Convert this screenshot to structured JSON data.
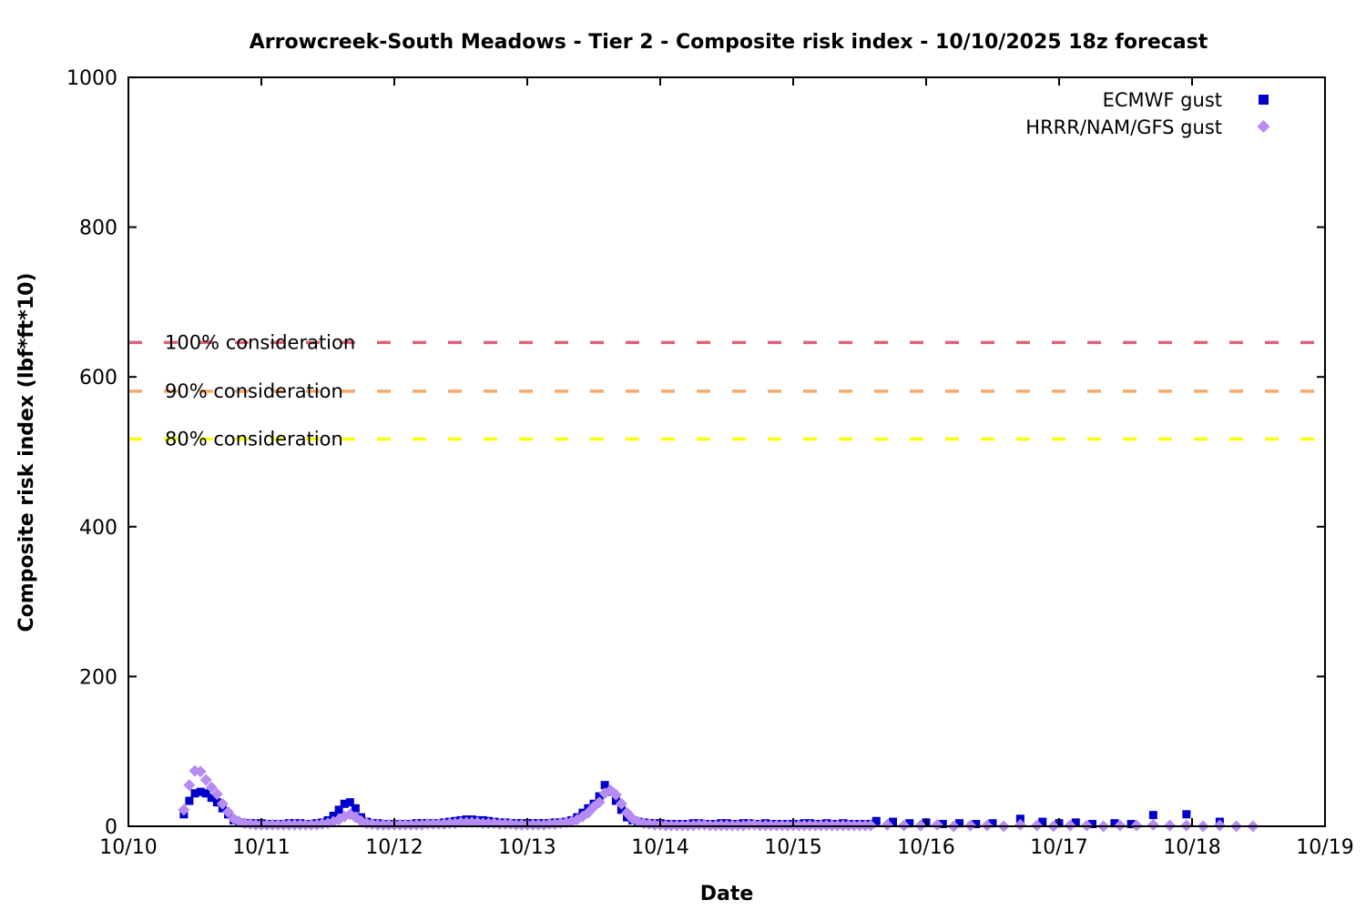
{
  "chart_data": {
    "type": "scatter",
    "title": "Arrowcreek-South Meadows - Tier 2 - Composite risk index - 10/10/2025 18z forecast",
    "xlabel": "Date",
    "ylabel": "Composite risk index (lbf*ft*10)",
    "xlim": [
      10,
      19
    ],
    "ylim": [
      0,
      1000
    ],
    "grid": false,
    "legend_position": "top-right-inside",
    "x_tick_labels": [
      "10/10",
      "10/11",
      "10/12",
      "10/13",
      "10/14",
      "10/15",
      "10/16",
      "10/17",
      "10/18",
      "10/19"
    ],
    "x_tick_values": [
      10,
      11,
      12,
      13,
      14,
      15,
      16,
      17,
      18,
      19
    ],
    "y_tick_labels": [
      "0",
      "200",
      "400",
      "600",
      "800",
      "1000"
    ],
    "y_tick_values": [
      0,
      200,
      400,
      600,
      800,
      1000
    ],
    "thresholds": [
      {
        "label": "100% consideration",
        "value": 646,
        "color": "#db6379",
        "style": "dashed"
      },
      {
        "label": "90% consideration",
        "value": 581,
        "color": "#f4aa6c",
        "style": "dashed"
      },
      {
        "label": "80% consideration",
        "value": 517,
        "color": "#ffff00",
        "style": "dashed"
      }
    ],
    "series": [
      {
        "name": "ECMWF gust",
        "marker": "square",
        "color": "#0000cc",
        "points": [
          [
            10.417,
            16
          ],
          [
            10.458,
            34
          ],
          [
            10.5,
            44
          ],
          [
            10.542,
            46
          ],
          [
            10.583,
            44
          ],
          [
            10.625,
            38
          ],
          [
            10.667,
            32
          ],
          [
            10.708,
            24
          ],
          [
            10.75,
            16
          ],
          [
            10.792,
            8
          ],
          [
            10.833,
            5
          ],
          [
            10.875,
            4
          ],
          [
            10.917,
            4
          ],
          [
            10.958,
            4
          ],
          [
            11.0,
            4
          ],
          [
            11.042,
            3
          ],
          [
            11.083,
            3
          ],
          [
            11.125,
            3
          ],
          [
            11.167,
            3
          ],
          [
            11.208,
            4
          ],
          [
            11.25,
            4
          ],
          [
            11.292,
            4
          ],
          [
            11.333,
            3
          ],
          [
            11.375,
            3
          ],
          [
            11.417,
            4
          ],
          [
            11.458,
            5
          ],
          [
            11.5,
            8
          ],
          [
            11.542,
            14
          ],
          [
            11.583,
            22
          ],
          [
            11.625,
            30
          ],
          [
            11.667,
            32
          ],
          [
            11.708,
            24
          ],
          [
            11.75,
            12
          ],
          [
            11.792,
            6
          ],
          [
            11.833,
            4
          ],
          [
            11.875,
            4
          ],
          [
            11.917,
            3
          ],
          [
            11.958,
            3
          ],
          [
            12.0,
            3
          ],
          [
            12.042,
            3
          ],
          [
            12.083,
            3
          ],
          [
            12.125,
            3
          ],
          [
            12.167,
            4
          ],
          [
            12.208,
            4
          ],
          [
            12.25,
            4
          ],
          [
            12.292,
            4
          ],
          [
            12.333,
            4
          ],
          [
            12.375,
            5
          ],
          [
            12.417,
            6
          ],
          [
            12.458,
            7
          ],
          [
            12.5,
            8
          ],
          [
            12.542,
            9
          ],
          [
            12.583,
            9
          ],
          [
            12.625,
            8
          ],
          [
            12.667,
            8
          ],
          [
            12.708,
            7
          ],
          [
            12.75,
            6
          ],
          [
            12.792,
            5
          ],
          [
            12.833,
            5
          ],
          [
            12.875,
            4
          ],
          [
            12.917,
            4
          ],
          [
            12.958,
            4
          ],
          [
            13.0,
            4
          ],
          [
            13.042,
            4
          ],
          [
            13.083,
            4
          ],
          [
            13.125,
            4
          ],
          [
            13.167,
            4
          ],
          [
            13.208,
            5
          ],
          [
            13.25,
            5
          ],
          [
            13.292,
            6
          ],
          [
            13.333,
            8
          ],
          [
            13.375,
            12
          ],
          [
            13.417,
            18
          ],
          [
            13.458,
            24
          ],
          [
            13.5,
            30
          ],
          [
            13.542,
            40
          ],
          [
            13.583,
            55
          ],
          [
            13.625,
            46
          ],
          [
            13.667,
            34
          ],
          [
            13.708,
            22
          ],
          [
            13.75,
            12
          ],
          [
            13.792,
            8
          ],
          [
            13.833,
            6
          ],
          [
            13.875,
            5
          ],
          [
            13.917,
            4
          ],
          [
            13.958,
            4
          ],
          [
            14.0,
            4
          ],
          [
            14.042,
            3
          ],
          [
            14.083,
            3
          ],
          [
            14.125,
            3
          ],
          [
            14.167,
            3
          ],
          [
            14.208,
            3
          ],
          [
            14.25,
            4
          ],
          [
            14.292,
            4
          ],
          [
            14.333,
            3
          ],
          [
            14.375,
            3
          ],
          [
            14.417,
            3
          ],
          [
            14.458,
            4
          ],
          [
            14.5,
            4
          ],
          [
            14.542,
            3
          ],
          [
            14.583,
            3
          ],
          [
            14.625,
            4
          ],
          [
            14.667,
            4
          ],
          [
            14.708,
            3
          ],
          [
            14.75,
            3
          ],
          [
            14.792,
            4
          ],
          [
            14.833,
            3
          ],
          [
            14.875,
            3
          ],
          [
            14.917,
            3
          ],
          [
            14.958,
            3
          ],
          [
            15.0,
            3
          ],
          [
            15.042,
            3
          ],
          [
            15.083,
            4
          ],
          [
            15.125,
            4
          ],
          [
            15.167,
            3
          ],
          [
            15.208,
            3
          ],
          [
            15.25,
            4
          ],
          [
            15.292,
            3
          ],
          [
            15.333,
            3
          ],
          [
            15.375,
            4
          ],
          [
            15.417,
            3
          ],
          [
            15.458,
            3
          ],
          [
            15.5,
            3
          ],
          [
            15.542,
            3
          ],
          [
            15.583,
            3
          ],
          [
            15.625,
            7
          ],
          [
            15.75,
            6
          ],
          [
            15.875,
            4
          ],
          [
            16.0,
            5
          ],
          [
            16.125,
            3
          ],
          [
            16.25,
            4
          ],
          [
            16.375,
            3
          ],
          [
            16.5,
            4
          ],
          [
            16.708,
            10
          ],
          [
            16.875,
            6
          ],
          [
            17.0,
            4
          ],
          [
            17.125,
            5
          ],
          [
            17.25,
            3
          ],
          [
            17.417,
            4
          ],
          [
            17.542,
            3
          ],
          [
            17.708,
            15
          ],
          [
            17.958,
            16
          ],
          [
            18.208,
            6
          ]
        ]
      },
      {
        "name": "HRRR/NAM/GFS gust",
        "marker": "diamond",
        "color": "#b78cf2",
        "points": [
          [
            10.417,
            22
          ],
          [
            10.458,
            55
          ],
          [
            10.5,
            74
          ],
          [
            10.542,
            73
          ],
          [
            10.583,
            62
          ],
          [
            10.625,
            52
          ],
          [
            10.667,
            43
          ],
          [
            10.708,
            30
          ],
          [
            10.75,
            19
          ],
          [
            10.792,
            10
          ],
          [
            10.833,
            6
          ],
          [
            10.875,
            4
          ],
          [
            10.917,
            3
          ],
          [
            10.958,
            2
          ],
          [
            11.0,
            2
          ],
          [
            11.042,
            2
          ],
          [
            11.083,
            2
          ],
          [
            11.125,
            2
          ],
          [
            11.167,
            2
          ],
          [
            11.208,
            2
          ],
          [
            11.25,
            2
          ],
          [
            11.292,
            2
          ],
          [
            11.333,
            2
          ],
          [
            11.375,
            2
          ],
          [
            11.417,
            2
          ],
          [
            11.458,
            3
          ],
          [
            11.5,
            4
          ],
          [
            11.542,
            6
          ],
          [
            11.583,
            9
          ],
          [
            11.625,
            13
          ],
          [
            11.667,
            16
          ],
          [
            11.708,
            12
          ],
          [
            11.75,
            7
          ],
          [
            11.792,
            4
          ],
          [
            11.833,
            3
          ],
          [
            11.875,
            2
          ],
          [
            11.917,
            2
          ],
          [
            11.958,
            2
          ],
          [
            12.0,
            2
          ],
          [
            12.042,
            2
          ],
          [
            12.083,
            2
          ],
          [
            12.125,
            2
          ],
          [
            12.167,
            2
          ],
          [
            12.208,
            2
          ],
          [
            12.25,
            3
          ],
          [
            12.292,
            3
          ],
          [
            12.333,
            3
          ],
          [
            12.375,
            3
          ],
          [
            12.417,
            4
          ],
          [
            12.458,
            4
          ],
          [
            12.5,
            5
          ],
          [
            12.542,
            5
          ],
          [
            12.583,
            5
          ],
          [
            12.625,
            5
          ],
          [
            12.667,
            4
          ],
          [
            12.708,
            4
          ],
          [
            12.75,
            4
          ],
          [
            12.792,
            3
          ],
          [
            12.833,
            3
          ],
          [
            12.875,
            3
          ],
          [
            12.917,
            2
          ],
          [
            12.958,
            2
          ],
          [
            13.0,
            2
          ],
          [
            13.042,
            2
          ],
          [
            13.083,
            2
          ],
          [
            13.125,
            2
          ],
          [
            13.167,
            3
          ],
          [
            13.208,
            3
          ],
          [
            13.25,
            4
          ],
          [
            13.292,
            5
          ],
          [
            13.333,
            6
          ],
          [
            13.375,
            9
          ],
          [
            13.417,
            13
          ],
          [
            13.458,
            18
          ],
          [
            13.5,
            26
          ],
          [
            13.542,
            32
          ],
          [
            13.583,
            44
          ],
          [
            13.625,
            48
          ],
          [
            13.667,
            42
          ],
          [
            13.708,
            30
          ],
          [
            13.75,
            18
          ],
          [
            13.792,
            10
          ],
          [
            13.833,
            6
          ],
          [
            13.875,
            4
          ],
          [
            13.917,
            3
          ],
          [
            13.958,
            2
          ],
          [
            14.0,
            2
          ],
          [
            14.042,
            1
          ],
          [
            14.083,
            1
          ],
          [
            14.125,
            1
          ],
          [
            14.167,
            1
          ],
          [
            14.208,
            1
          ],
          [
            14.25,
            1
          ],
          [
            14.292,
            2
          ],
          [
            14.333,
            2
          ],
          [
            14.375,
            1
          ],
          [
            14.417,
            1
          ],
          [
            14.458,
            1
          ],
          [
            14.5,
            1
          ],
          [
            14.542,
            1
          ],
          [
            14.583,
            1
          ],
          [
            14.625,
            1
          ],
          [
            14.667,
            2
          ],
          [
            14.708,
            2
          ],
          [
            14.75,
            1
          ],
          [
            14.792,
            1
          ],
          [
            14.833,
            1
          ],
          [
            14.875,
            1
          ],
          [
            14.917,
            1
          ],
          [
            14.958,
            1
          ],
          [
            15.0,
            1
          ],
          [
            15.042,
            1
          ],
          [
            15.083,
            1
          ],
          [
            15.125,
            1
          ],
          [
            15.167,
            1
          ],
          [
            15.208,
            1
          ],
          [
            15.25,
            1
          ],
          [
            15.292,
            1
          ],
          [
            15.333,
            1
          ],
          [
            15.375,
            1
          ],
          [
            15.417,
            1
          ],
          [
            15.458,
            1
          ],
          [
            15.5,
            1
          ],
          [
            15.542,
            1
          ],
          [
            15.583,
            1
          ],
          [
            15.708,
            2
          ],
          [
            15.833,
            1
          ],
          [
            15.958,
            1
          ],
          [
            16.083,
            2
          ],
          [
            16.208,
            0
          ],
          [
            16.333,
            1
          ],
          [
            16.458,
            1
          ],
          [
            16.583,
            0
          ],
          [
            16.708,
            2
          ],
          [
            16.833,
            1
          ],
          [
            16.958,
            0
          ],
          [
            17.083,
            1
          ],
          [
            17.208,
            1
          ],
          [
            17.333,
            0
          ],
          [
            17.458,
            1
          ],
          [
            17.583,
            1
          ],
          [
            17.708,
            2
          ],
          [
            17.833,
            1
          ],
          [
            17.958,
            1
          ],
          [
            18.083,
            0
          ],
          [
            18.208,
            1
          ],
          [
            18.333,
            0
          ],
          [
            18.458,
            0
          ]
        ]
      }
    ]
  }
}
